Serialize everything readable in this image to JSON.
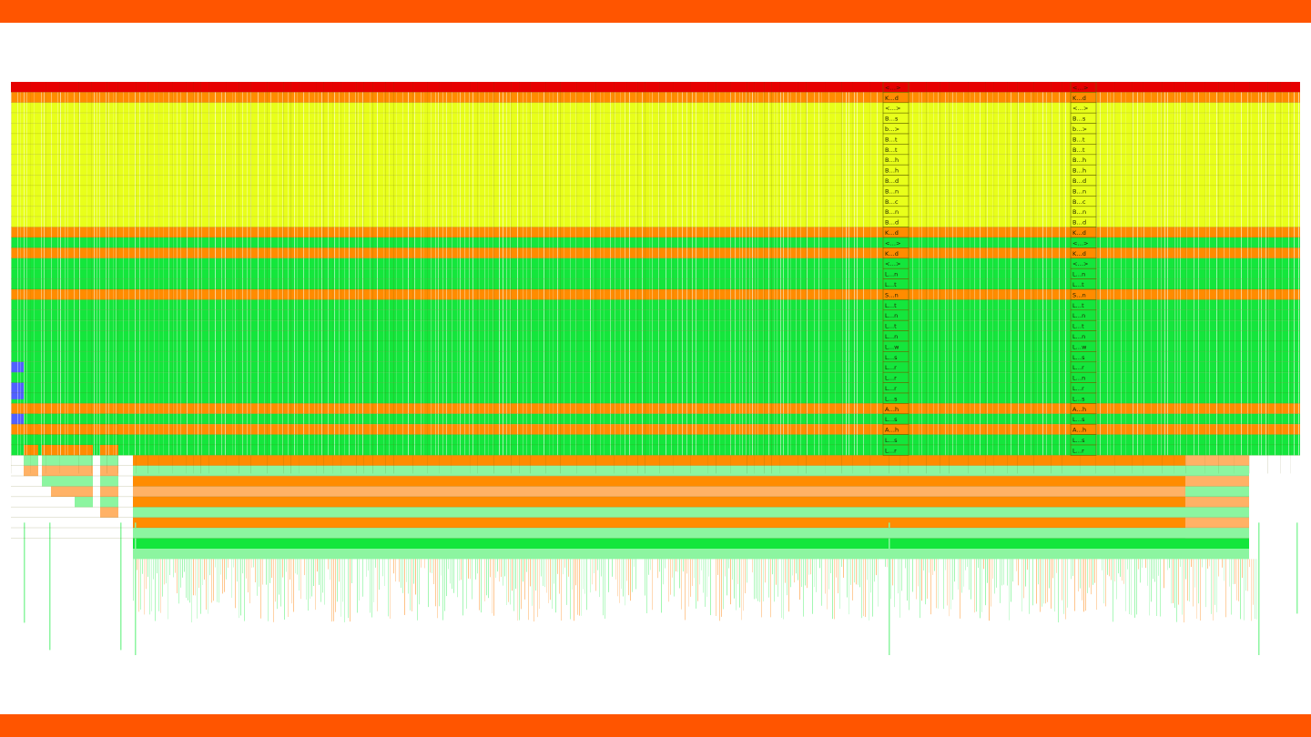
{
  "chart_data": {
    "type": "flamegraph",
    "colors": {
      "banner": "#ff5500",
      "root": "#e60000",
      "kernel": "#ff8c00",
      "kernel_light": "#ffb266",
      "system": "#e8ff1a",
      "system_light": "#f4ff80",
      "user": "#14e63c",
      "user_light": "#8cf5a0",
      "other": "#5060ff",
      "separator": "#5a5a00"
    },
    "label_columns": [
      {
        "stack": [
          {
            "label": "<…>",
            "kind": "root"
          },
          {
            "label": "K…d",
            "kind": "kernel"
          },
          {
            "label": "<…>",
            "kind": "system"
          },
          {
            "label": "B…s",
            "kind": "system"
          },
          {
            "label": "b…>",
            "kind": "system"
          },
          {
            "label": "B…t",
            "kind": "system"
          },
          {
            "label": "B…t",
            "kind": "system"
          },
          {
            "label": "B…h",
            "kind": "system"
          },
          {
            "label": "B…h",
            "kind": "system"
          },
          {
            "label": "B…d",
            "kind": "system"
          },
          {
            "label": "B…n",
            "kind": "system"
          },
          {
            "label": "B…c",
            "kind": "system"
          },
          {
            "label": "B…n",
            "kind": "system"
          },
          {
            "label": "B…d",
            "kind": "system"
          },
          {
            "label": "K…d",
            "kind": "kernel"
          },
          {
            "label": "<…>",
            "kind": "user"
          },
          {
            "label": "K…d",
            "kind": "kernel"
          },
          {
            "label": "<…>",
            "kind": "user"
          },
          {
            "label": "L…n",
            "kind": "user"
          },
          {
            "label": "L…t",
            "kind": "user"
          },
          {
            "label": "S…n",
            "kind": "kernel"
          },
          {
            "label": "L…t",
            "kind": "user"
          },
          {
            "label": "L…n",
            "kind": "user"
          },
          {
            "label": "L…t",
            "kind": "user"
          },
          {
            "label": "L…n",
            "kind": "user"
          },
          {
            "label": "L…w",
            "kind": "user"
          },
          {
            "label": "L…s",
            "kind": "user"
          },
          {
            "label": "L…r",
            "kind": "user"
          },
          {
            "label": "L…r",
            "kind": "user"
          },
          {
            "label": "L…r",
            "kind": "user"
          },
          {
            "label": "L…s",
            "kind": "user"
          },
          {
            "label": "A…h",
            "kind": "kernel"
          },
          {
            "label": "L…s",
            "kind": "user"
          },
          {
            "label": "A…h",
            "kind": "kernel"
          },
          {
            "label": "L…s",
            "kind": "user"
          },
          {
            "label": "L…r",
            "kind": "user"
          }
        ]
      },
      {
        "stack": [
          {
            "label": "<…>",
            "kind": "root"
          },
          {
            "label": "K…d",
            "kind": "kernel"
          },
          {
            "label": "<…>",
            "kind": "system"
          },
          {
            "label": "B…s",
            "kind": "system"
          },
          {
            "label": "b…>",
            "kind": "system"
          },
          {
            "label": "B…t",
            "kind": "system"
          },
          {
            "label": "B…t",
            "kind": "system"
          },
          {
            "label": "B…h",
            "kind": "system"
          },
          {
            "label": "B…h",
            "kind": "system"
          },
          {
            "label": "B…d",
            "kind": "system"
          },
          {
            "label": "B…n",
            "kind": "system"
          },
          {
            "label": "B…c",
            "kind": "system"
          },
          {
            "label": "B…n",
            "kind": "system"
          },
          {
            "label": "B…d",
            "kind": "system"
          },
          {
            "label": "K…d",
            "kind": "kernel"
          },
          {
            "label": "<…>",
            "kind": "user"
          },
          {
            "label": "K…d",
            "kind": "kernel"
          },
          {
            "label": "<…>",
            "kind": "user"
          },
          {
            "label": "L…n",
            "kind": "user"
          },
          {
            "label": "L…t",
            "kind": "user"
          },
          {
            "label": "S…n",
            "kind": "kernel"
          },
          {
            "label": "L…t",
            "kind": "user"
          },
          {
            "label": "L…n",
            "kind": "user"
          },
          {
            "label": "L…t",
            "kind": "user"
          },
          {
            "label": "L…n",
            "kind": "user"
          },
          {
            "label": "L…w",
            "kind": "user"
          },
          {
            "label": "L…s",
            "kind": "user"
          },
          {
            "label": "L…r",
            "kind": "user"
          },
          {
            "label": "L…n",
            "kind": "user"
          },
          {
            "label": "L…r",
            "kind": "user"
          },
          {
            "label": "L…s",
            "kind": "user"
          },
          {
            "label": "A…h",
            "kind": "kernel"
          },
          {
            "label": "L…s",
            "kind": "user"
          },
          {
            "label": "A…h",
            "kind": "kernel"
          },
          {
            "label": "L…s",
            "kind": "user"
          },
          {
            "label": "L…r",
            "kind": "user"
          }
        ]
      }
    ]
  }
}
